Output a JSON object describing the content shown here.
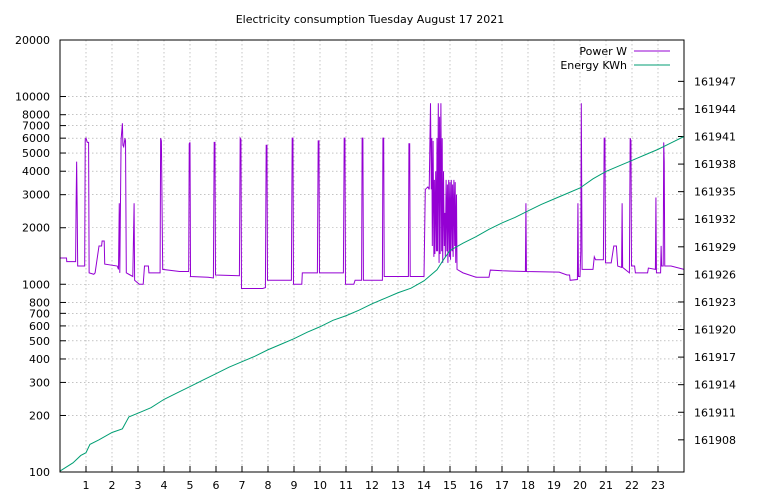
{
  "chart_data": {
    "type": "line",
    "title": "Electricity consumption Tuesday August 17 2021",
    "xlabel": "",
    "ylabel": "",
    "y2label": "",
    "grid": true,
    "legend_position": "top-right",
    "x_ticks": [
      1,
      2,
      3,
      4,
      5,
      6,
      7,
      8,
      9,
      10,
      11,
      12,
      13,
      14,
      15,
      16,
      17,
      18,
      19,
      20,
      21,
      22,
      23
    ],
    "xlim": [
      0,
      24
    ],
    "y_scale": "log",
    "ylim": [
      100,
      20000
    ],
    "y_ticks": [
      100,
      200,
      300,
      400,
      500,
      600,
      700,
      800,
      1000,
      2000,
      3000,
      4000,
      5000,
      6000,
      7000,
      8000,
      10000,
      20000
    ],
    "y2lim": [
      161904.5,
      161951.5
    ],
    "y2_ticks": [
      161908,
      161911,
      161914,
      161917,
      161920,
      161923,
      161926,
      161929,
      161932,
      161935,
      161938,
      161941,
      161944,
      161947
    ],
    "series": [
      {
        "name": "Power W",
        "color": "#9400d3",
        "axis": "y1",
        "points": [
          [
            0.0,
            1380
          ],
          [
            0.25,
            1380
          ],
          [
            0.26,
            1320
          ],
          [
            0.6,
            1320
          ],
          [
            0.62,
            2700
          ],
          [
            0.64,
            4500
          ],
          [
            0.66,
            2600
          ],
          [
            0.68,
            1250
          ],
          [
            0.95,
            1250
          ],
          [
            0.97,
            5900
          ],
          [
            1.0,
            6000
          ],
          [
            1.05,
            5700
          ],
          [
            1.1,
            5700
          ],
          [
            1.12,
            1150
          ],
          [
            1.3,
            1130
          ],
          [
            1.35,
            1150
          ],
          [
            1.5,
            1600
          ],
          [
            1.6,
            1600
          ],
          [
            1.62,
            1700
          ],
          [
            1.7,
            1700
          ],
          [
            1.72,
            1280
          ],
          [
            2.2,
            1250
          ],
          [
            2.25,
            1200
          ],
          [
            2.28,
            2700
          ],
          [
            2.3,
            1150
          ],
          [
            2.35,
            5900
          ],
          [
            2.4,
            7200
          ],
          [
            2.42,
            5500
          ],
          [
            2.45,
            5400
          ],
          [
            2.5,
            6000
          ],
          [
            2.52,
            5800
          ],
          [
            2.55,
            1150
          ],
          [
            2.8,
            1100
          ],
          [
            2.85,
            2700
          ],
          [
            2.87,
            1050
          ],
          [
            3.05,
            1000
          ],
          [
            3.2,
            1000
          ],
          [
            3.25,
            1250
          ],
          [
            3.4,
            1250
          ],
          [
            3.42,
            1150
          ],
          [
            3.85,
            1150
          ],
          [
            3.87,
            6000
          ],
          [
            3.9,
            5800
          ],
          [
            3.95,
            1200
          ],
          [
            4.6,
            1170
          ],
          [
            4.95,
            1170
          ],
          [
            4.97,
            5600
          ],
          [
            5.0,
            5700
          ],
          [
            5.02,
            1100
          ],
          [
            5.7,
            1090
          ],
          [
            5.9,
            1080
          ],
          [
            5.93,
            5700
          ],
          [
            5.96,
            5700
          ],
          [
            5.98,
            1120
          ],
          [
            6.9,
            1110
          ],
          [
            6.93,
            6000
          ],
          [
            6.96,
            5900
          ],
          [
            6.98,
            950
          ],
          [
            7.8,
            950
          ],
          [
            7.9,
            960
          ],
          [
            7.93,
            5500
          ],
          [
            7.96,
            5500
          ],
          [
            7.98,
            1050
          ],
          [
            8.9,
            1050
          ],
          [
            8.93,
            6000
          ],
          [
            8.96,
            6000
          ],
          [
            8.98,
            1000
          ],
          [
            9.3,
            1000
          ],
          [
            9.32,
            1150
          ],
          [
            9.9,
            1150
          ],
          [
            9.93,
            5800
          ],
          [
            9.96,
            5800
          ],
          [
            9.98,
            1150
          ],
          [
            10.9,
            1150
          ],
          [
            10.93,
            6000
          ],
          [
            10.96,
            6000
          ],
          [
            10.98,
            1000
          ],
          [
            11.3,
            1000
          ],
          [
            11.35,
            1050
          ],
          [
            11.6,
            1050
          ],
          [
            11.62,
            6000
          ],
          [
            11.65,
            6000
          ],
          [
            11.67,
            1050
          ],
          [
            12.4,
            1050
          ],
          [
            12.42,
            6000
          ],
          [
            12.45,
            6000
          ],
          [
            12.47,
            1100
          ],
          [
            13.4,
            1100
          ],
          [
            13.42,
            5600
          ],
          [
            13.45,
            5600
          ],
          [
            13.47,
            1100
          ],
          [
            14.0,
            1100
          ],
          [
            14.05,
            3200
          ],
          [
            14.15,
            3300
          ],
          [
            14.2,
            3200
          ],
          [
            14.25,
            9200
          ],
          [
            14.28,
            3200
          ],
          [
            14.3,
            6000
          ],
          [
            14.32,
            1600
          ],
          [
            14.35,
            5800
          ],
          [
            14.38,
            1400
          ],
          [
            14.4,
            3600
          ],
          [
            14.42,
            1450
          ],
          [
            14.45,
            4000
          ],
          [
            14.48,
            1500
          ],
          [
            14.5,
            6000
          ],
          [
            14.52,
            1500
          ],
          [
            14.55,
            9200
          ],
          [
            14.58,
            1300
          ],
          [
            14.6,
            7800
          ],
          [
            14.62,
            1450
          ],
          [
            14.65,
            9200
          ],
          [
            14.68,
            1500
          ],
          [
            14.7,
            6000
          ],
          [
            14.72,
            1300
          ],
          [
            14.75,
            4000
          ],
          [
            14.78,
            1600
          ],
          [
            14.8,
            2400
          ],
          [
            14.82,
            1400
          ],
          [
            14.85,
            3600
          ],
          [
            14.88,
            1500
          ],
          [
            14.9,
            3400
          ],
          [
            14.92,
            1300
          ],
          [
            14.95,
            3600
          ],
          [
            14.98,
            1400
          ],
          [
            15.0,
            3500
          ],
          [
            15.02,
            1350
          ],
          [
            15.05,
            3600
          ],
          [
            15.08,
            1500
          ],
          [
            15.1,
            3400
          ],
          [
            15.12,
            1400
          ],
          [
            15.15,
            3600
          ],
          [
            15.18,
            1600
          ],
          [
            15.2,
            3500
          ],
          [
            15.22,
            1300
          ],
          [
            15.25,
            3000
          ],
          [
            15.27,
            1200
          ],
          [
            15.5,
            1150
          ],
          [
            16.0,
            1090
          ],
          [
            16.5,
            1090
          ],
          [
            16.55,
            1190
          ],
          [
            17.0,
            1180
          ],
          [
            17.9,
            1170
          ],
          [
            17.92,
            2700
          ],
          [
            17.94,
            1170
          ],
          [
            19.2,
            1160
          ],
          [
            19.5,
            1120
          ],
          [
            19.6,
            1120
          ],
          [
            19.62,
            1050
          ],
          [
            19.9,
            1060
          ],
          [
            19.92,
            2700
          ],
          [
            19.94,
            1100
          ],
          [
            20.0,
            1100
          ],
          [
            20.03,
            1500
          ],
          [
            20.05,
            9200
          ],
          [
            20.08,
            1200
          ],
          [
            20.5,
            1200
          ],
          [
            20.55,
            1400
          ],
          [
            20.6,
            1350
          ],
          [
            20.9,
            1350
          ],
          [
            20.93,
            6000
          ],
          [
            20.96,
            6000
          ],
          [
            20.98,
            1300
          ],
          [
            21.2,
            1300
          ],
          [
            21.3,
            1600
          ],
          [
            21.4,
            1600
          ],
          [
            21.45,
            1250
          ],
          [
            21.6,
            1230
          ],
          [
            21.62,
            2700
          ],
          [
            21.64,
            1230
          ],
          [
            21.9,
            1150
          ],
          [
            21.93,
            6000
          ],
          [
            21.96,
            5800
          ],
          [
            21.98,
            1250
          ],
          [
            22.1,
            1250
          ],
          [
            22.13,
            1150
          ],
          [
            22.6,
            1150
          ],
          [
            22.63,
            1220
          ],
          [
            22.9,
            1200
          ],
          [
            22.92,
            2900
          ],
          [
            22.94,
            1150
          ],
          [
            23.1,
            1150
          ],
          [
            23.12,
            1600
          ],
          [
            23.14,
            1250
          ],
          [
            23.2,
            1250
          ],
          [
            23.22,
            5700
          ],
          [
            23.24,
            4500
          ],
          [
            23.26,
            1250
          ],
          [
            23.5,
            1250
          ],
          [
            24.0,
            1200
          ]
        ]
      },
      {
        "name": "Energy KWh",
        "color": "#009e73",
        "axis": "y2",
        "points": [
          [
            0.0,
            161904.6
          ],
          [
            0.5,
            161905.5
          ],
          [
            0.8,
            161906.3
          ],
          [
            1.0,
            161906.6
          ],
          [
            1.15,
            161907.5
          ],
          [
            1.5,
            161908.0
          ],
          [
            2.0,
            161908.8
          ],
          [
            2.4,
            161909.2
          ],
          [
            2.65,
            161910.5
          ],
          [
            3.0,
            161910.9
          ],
          [
            3.5,
            161911.5
          ],
          [
            4.0,
            161912.4
          ],
          [
            4.5,
            161913.1
          ],
          [
            5.0,
            161913.8
          ],
          [
            5.5,
            161914.5
          ],
          [
            6.0,
            161915.2
          ],
          [
            6.5,
            161915.9
          ],
          [
            7.0,
            161916.5
          ],
          [
            7.5,
            161917.1
          ],
          [
            8.0,
            161917.8
          ],
          [
            8.5,
            161918.4
          ],
          [
            9.0,
            161919.0
          ],
          [
            9.5,
            161919.7
          ],
          [
            10.0,
            161920.3
          ],
          [
            10.5,
            161921.0
          ],
          [
            11.0,
            161921.5
          ],
          [
            11.5,
            161922.1
          ],
          [
            12.0,
            161922.8
          ],
          [
            12.5,
            161923.4
          ],
          [
            13.0,
            161924.0
          ],
          [
            13.5,
            161924.5
          ],
          [
            14.0,
            161925.3
          ],
          [
            14.5,
            161926.5
          ],
          [
            14.75,
            161927.6
          ],
          [
            15.0,
            161928.6
          ],
          [
            15.5,
            161929.4
          ],
          [
            16.0,
            161930.1
          ],
          [
            16.5,
            161930.9
          ],
          [
            17.0,
            161931.6
          ],
          [
            17.5,
            161932.2
          ],
          [
            18.0,
            161932.9
          ],
          [
            18.5,
            161933.6
          ],
          [
            19.0,
            161934.2
          ],
          [
            19.5,
            161934.8
          ],
          [
            20.0,
            161935.4
          ],
          [
            20.5,
            161936.4
          ],
          [
            21.0,
            161937.2
          ],
          [
            21.5,
            161937.8
          ],
          [
            22.0,
            161938.4
          ],
          [
            22.5,
            161939.0
          ],
          [
            23.0,
            161939.6
          ],
          [
            23.5,
            161940.3
          ],
          [
            24.0,
            161941.0
          ]
        ]
      }
    ]
  }
}
